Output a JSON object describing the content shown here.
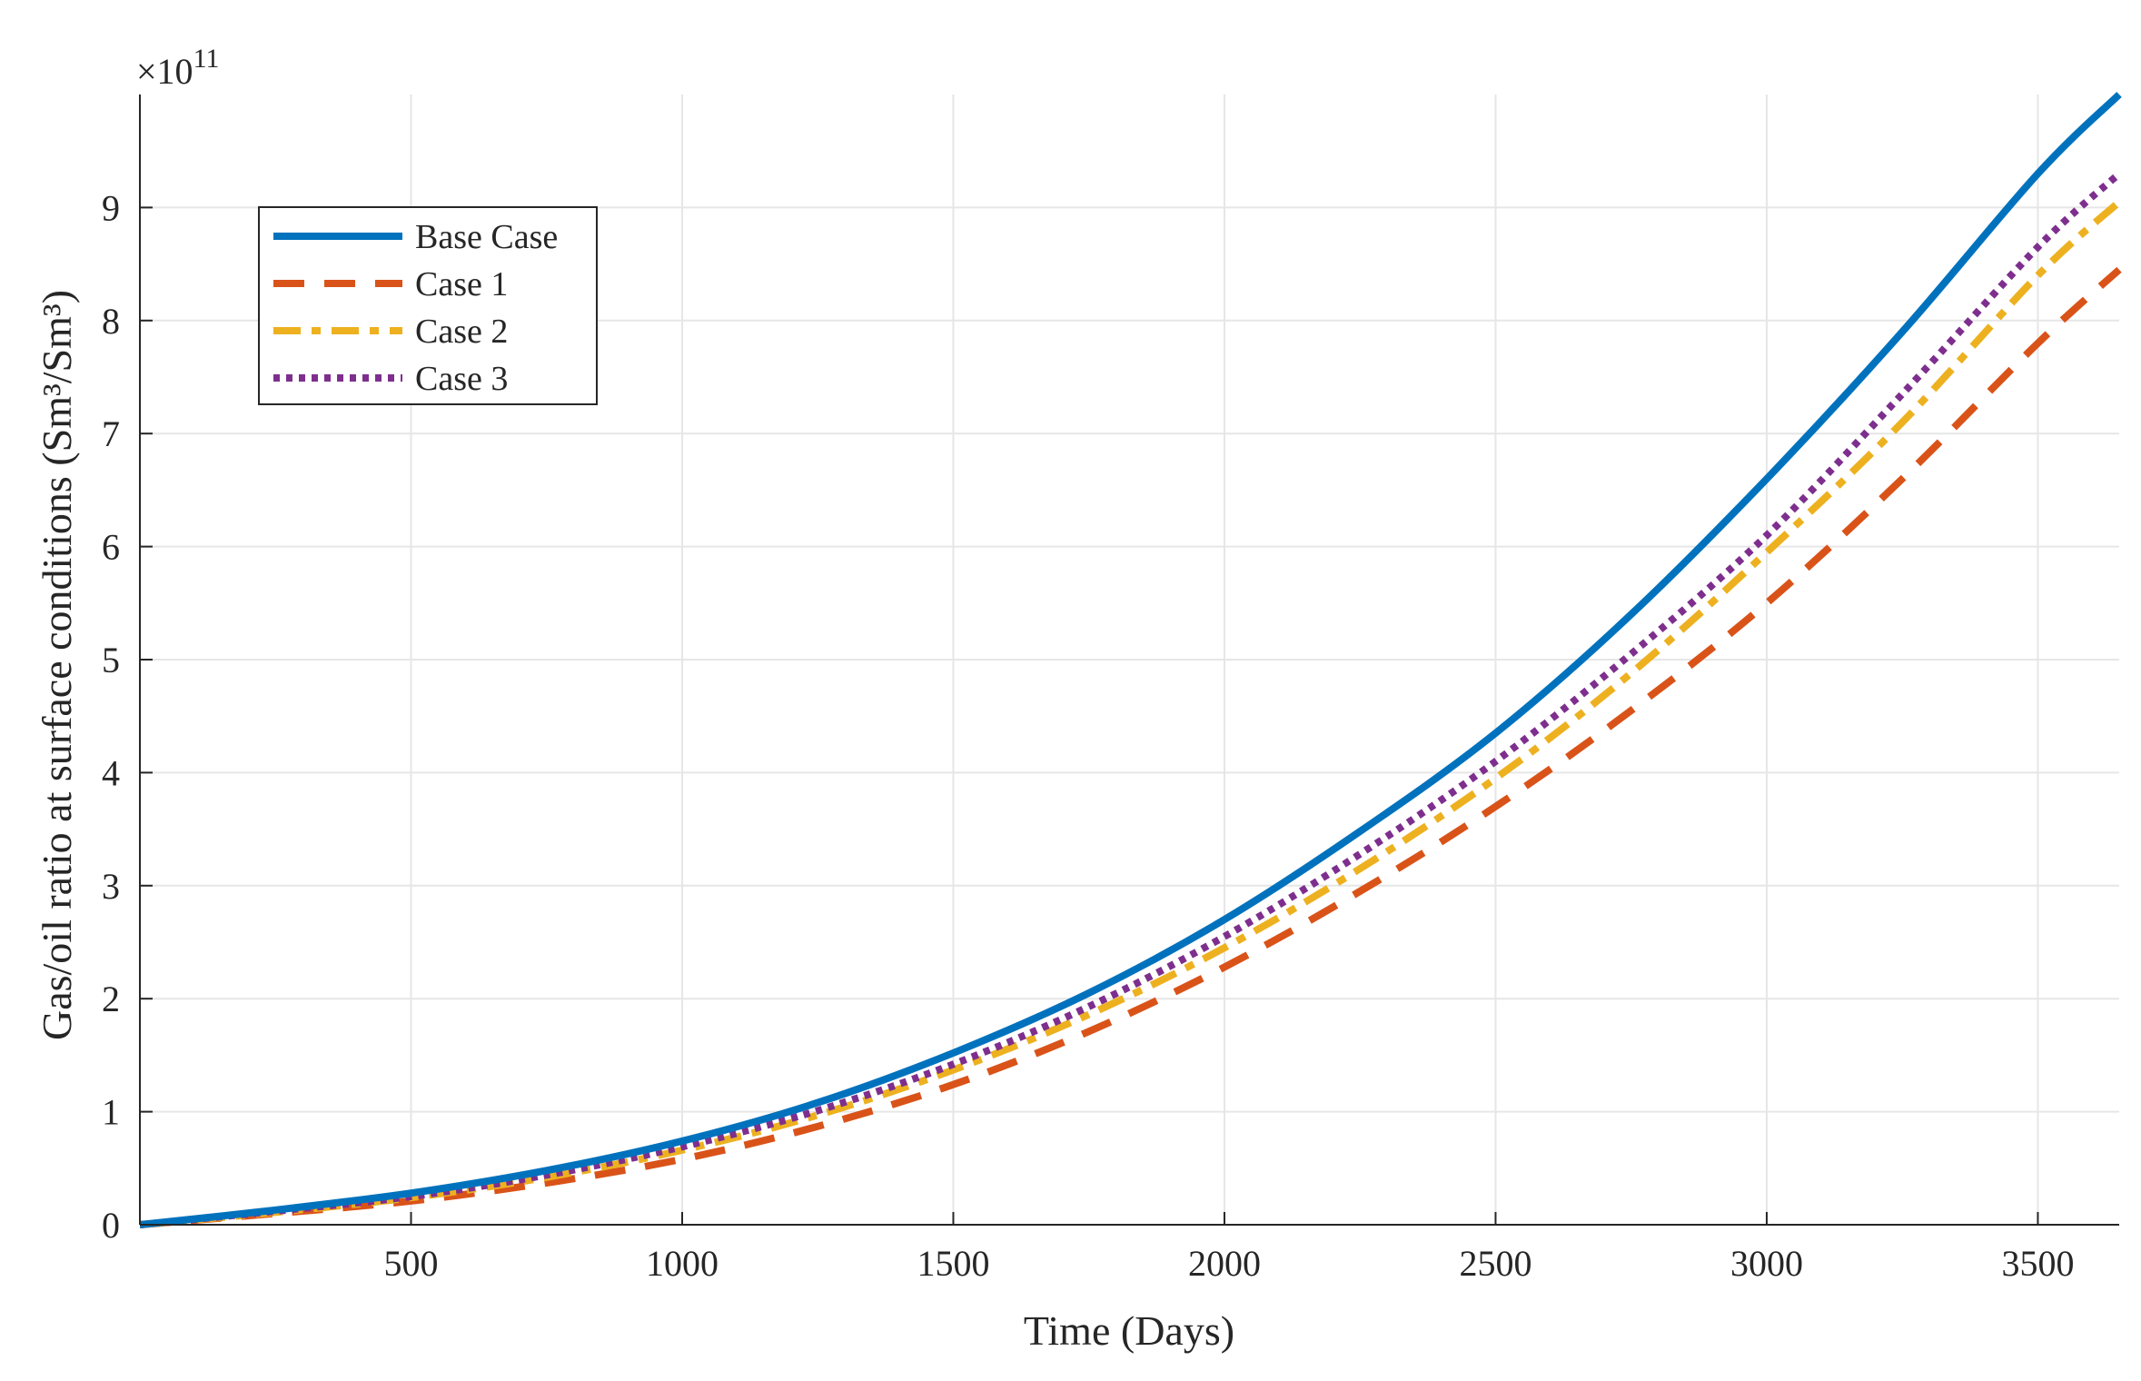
{
  "chart_data": {
    "type": "line",
    "xlabel": "Time (Days)",
    "ylabel": "Gas/oil ratio at surface conditions (Sm³/Sm³)",
    "y_multiplier": "×10",
    "y_exponent": "11",
    "xlim": [
      0,
      3650
    ],
    "ylim": [
      0,
      10
    ],
    "x_ticks": [
      500,
      1000,
      1500,
      2000,
      2500,
      3000,
      3500
    ],
    "y_ticks": [
      0,
      1,
      2,
      3,
      4,
      5,
      6,
      7,
      8,
      9
    ],
    "grid": true,
    "legend_position": "top-left",
    "x": [
      0,
      250,
      500,
      750,
      1000,
      1250,
      1500,
      1750,
      2000,
      2250,
      2500,
      2750,
      3000,
      3250,
      3500,
      3650
    ],
    "series": [
      {
        "name": "Base Case",
        "color": "#0072BD",
        "style": "solid",
        "values": [
          0,
          0.13,
          0.28,
          0.48,
          0.74,
          1.08,
          1.52,
          2.05,
          2.7,
          3.48,
          4.35,
          5.4,
          6.6,
          7.9,
          9.3,
          10.0
        ]
      },
      {
        "name": "Case 1",
        "color": "#D95319",
        "style": "dashed",
        "values": [
          0,
          0.1,
          0.21,
          0.37,
          0.58,
          0.87,
          1.24,
          1.71,
          2.28,
          2.95,
          3.7,
          4.55,
          5.5,
          6.6,
          7.8,
          8.45
        ]
      },
      {
        "name": "Case 2",
        "color": "#EDB120",
        "style": "dashdot",
        "values": [
          0,
          0.11,
          0.24,
          0.42,
          0.66,
          0.97,
          1.37,
          1.86,
          2.45,
          3.15,
          3.95,
          4.88,
          5.95,
          7.1,
          8.4,
          9.05
        ]
      },
      {
        "name": "Case 3",
        "color": "#7E2F8E",
        "style": "dotted",
        "values": [
          0,
          0.12,
          0.25,
          0.44,
          0.69,
          1.01,
          1.42,
          1.93,
          2.55,
          3.28,
          4.1,
          5.05,
          6.1,
          7.35,
          8.65,
          9.3
        ]
      }
    ]
  }
}
